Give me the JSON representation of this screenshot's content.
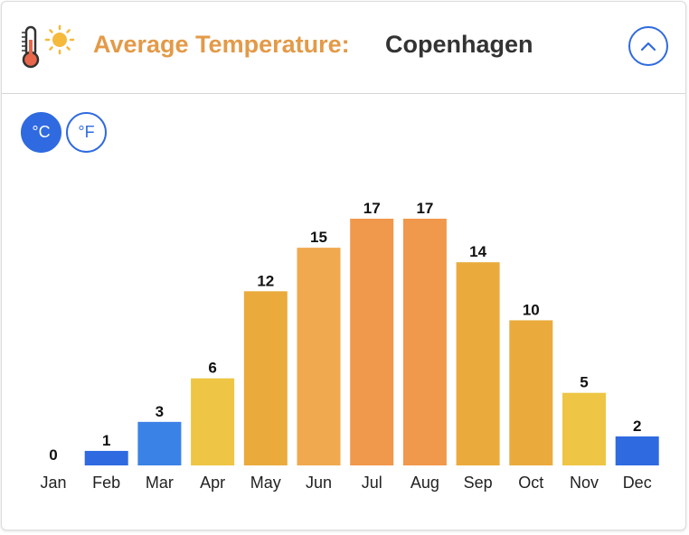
{
  "header": {
    "title_label": "Average Temperature:",
    "city": "Copenhagen",
    "icon": "thermometer-sun-icon",
    "collapse_icon": "chevron-up-icon"
  },
  "units": {
    "celsius_label": "°C",
    "fahrenheit_label": "°F",
    "selected": "celsius"
  },
  "colors": {
    "title": "#e39a48",
    "city": "#333333",
    "accent": "#2f6ae0",
    "cold": "#2f6ae0",
    "cool": "#3a82e6",
    "mild": "#eec544",
    "warm": "#eaab3c",
    "warmer": "#f0a94e",
    "hot": "#f0984b"
  },
  "chart_data": {
    "type": "bar",
    "title": "Average Temperature: Copenhagen",
    "unit": "°C",
    "categories": [
      "Jan",
      "Feb",
      "Mar",
      "Apr",
      "May",
      "Jun",
      "Jul",
      "Aug",
      "Sep",
      "Oct",
      "Nov",
      "Dec"
    ],
    "values": [
      0,
      1,
      3,
      6,
      12,
      15,
      17,
      17,
      14,
      10,
      5,
      2
    ],
    "bar_colors": [
      "#2f6ae0",
      "#2f6ae0",
      "#3a82e6",
      "#eec544",
      "#eaab3c",
      "#f0a94e",
      "#f0984b",
      "#f0984b",
      "#ebab3c",
      "#eaab3c",
      "#eec544",
      "#2f6ae0"
    ],
    "ylim": [
      0,
      17
    ],
    "grid": false,
    "data_labels": true
  }
}
